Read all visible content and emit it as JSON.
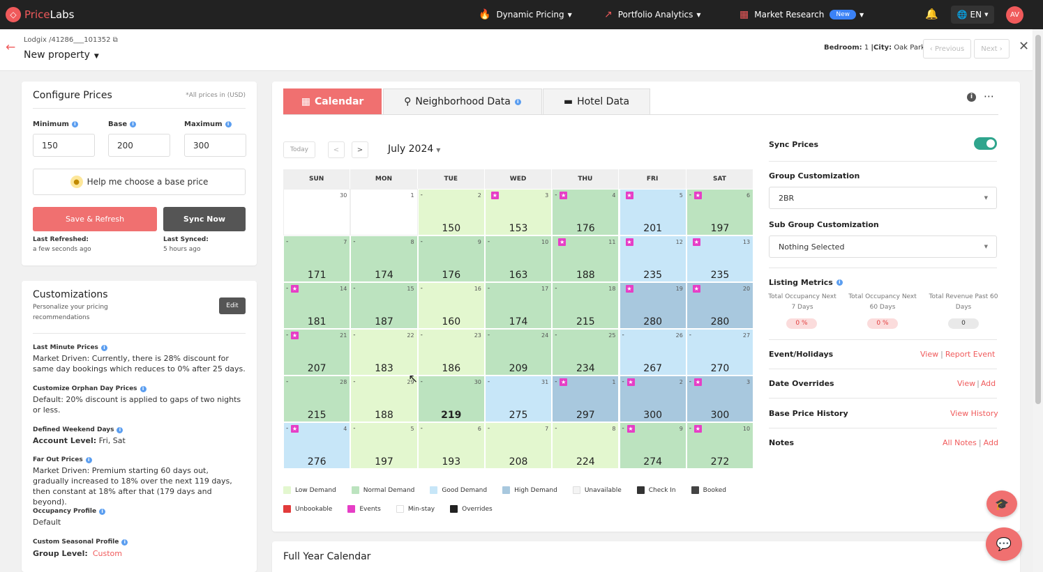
{
  "nav": {
    "logo_mark": "◇",
    "logo_price": "Price",
    "logo_labs": "Labs",
    "dynamic_pricing": "Dynamic Pricing",
    "portfolio_analytics": "Portfolio Analytics",
    "market_research": "Market Research",
    "new_badge": "New",
    "lang": "EN",
    "avatar": "AV"
  },
  "header": {
    "breadcrumb": "Lodgix /41286___101352",
    "title": "New property",
    "bedroom_label": "Bedroom:",
    "bedroom_value": "1",
    "city_label": "|City:",
    "city_value": "Oak Park",
    "previous": "Previous",
    "next": "Next"
  },
  "configure": {
    "title": "Configure Prices",
    "note": "*All prices in (USD)",
    "min_label": "Minimum",
    "base_label": "Base",
    "max_label": "Maximum",
    "min_value": "150",
    "base_value": "200",
    "max_value": "300",
    "help": "Help me choose a base price",
    "save": "Save & Refresh",
    "sync": "Sync Now",
    "last_refreshed_label": "Last Refreshed:",
    "last_refreshed_value": "a few seconds ago",
    "last_synced_label": "Last Synced:",
    "last_synced_value": "5 hours ago"
  },
  "customizations": {
    "title": "Customizations",
    "subtitle": "Personalize your pricing recommendations",
    "edit": "Edit",
    "items": [
      {
        "label": "Last Minute Prices",
        "text": "Market Driven: Currently, there is 28% discount for same day bookings which reduces to 0% after 25 days."
      },
      {
        "label": "Customize Orphan Day Prices",
        "text": "Default: 20% discount is applied to gaps of two nights or less."
      },
      {
        "label": "Defined Weekend Days",
        "prefix": "Account Level:",
        "text": "Fri, Sat"
      },
      {
        "label": "Far Out Prices",
        "text": "Market Driven: Premium starting 60 days out, gradually increased to 18% over the next 119 days, then constant at 18% after that (179 days and beyond)."
      },
      {
        "label": "Occupancy Profile",
        "text": "Default"
      },
      {
        "label": "Custom Seasonal Profile",
        "prefix": "Group Level:",
        "text": "Custom"
      }
    ]
  },
  "tabs": {
    "calendar": "Calendar",
    "neighborhood": "Neighborhood Data",
    "hotel": "Hotel Data"
  },
  "calendar": {
    "today": "Today",
    "prev": "<",
    "next": ">",
    "month": "July 2024",
    "weekdays": [
      "SUN",
      "MON",
      "TUE",
      "WED",
      "THU",
      "FRI",
      "SAT"
    ],
    "colors": {
      "low": "#e3f7cf",
      "normal": "#bce3bf",
      "good": "#c7e6f8",
      "high": "#a8c8de",
      "unavailable": "#f4f4f4",
      "blank": "#ffffff"
    },
    "weeks": [
      [
        {
          "day": "30",
          "price": "",
          "type": "blank",
          "dash": false,
          "star": false
        },
        {
          "day": "1",
          "price": "",
          "type": "blank",
          "dash": false,
          "star": false
        },
        {
          "day": "2",
          "price": "150",
          "type": "low",
          "dash": true,
          "star": false
        },
        {
          "day": "3",
          "price": "153",
          "type": "low",
          "dash": false,
          "star": true
        },
        {
          "day": "4",
          "price": "176",
          "type": "normal",
          "dash": true,
          "star": true
        },
        {
          "day": "5",
          "price": "201",
          "type": "good",
          "dash": false,
          "star": true
        },
        {
          "day": "6",
          "price": "197",
          "type": "normal",
          "dash": true,
          "star": true
        }
      ],
      [
        {
          "day": "7",
          "price": "171",
          "type": "normal",
          "dash": true,
          "star": false
        },
        {
          "day": "8",
          "price": "174",
          "type": "normal",
          "dash": true,
          "star": false
        },
        {
          "day": "9",
          "price": "176",
          "type": "normal",
          "dash": true,
          "star": false
        },
        {
          "day": "10",
          "price": "163",
          "type": "normal",
          "dash": true,
          "star": false
        },
        {
          "day": "11",
          "price": "188",
          "type": "normal",
          "dash": false,
          "star": true
        },
        {
          "day": "12",
          "price": "235",
          "type": "good",
          "dash": false,
          "star": true
        },
        {
          "day": "13",
          "price": "235",
          "type": "good",
          "dash": false,
          "star": true
        }
      ],
      [
        {
          "day": "14",
          "price": "181",
          "type": "normal",
          "dash": true,
          "star": true
        },
        {
          "day": "15",
          "price": "187",
          "type": "normal",
          "dash": true,
          "star": false
        },
        {
          "day": "16",
          "price": "160",
          "type": "low",
          "dash": true,
          "star": false
        },
        {
          "day": "17",
          "price": "174",
          "type": "normal",
          "dash": true,
          "star": false
        },
        {
          "day": "18",
          "price": "215",
          "type": "normal",
          "dash": true,
          "star": false
        },
        {
          "day": "19",
          "price": "280",
          "type": "high",
          "dash": false,
          "star": true
        },
        {
          "day": "20",
          "price": "280",
          "type": "high",
          "dash": false,
          "star": true
        }
      ],
      [
        {
          "day": "21",
          "price": "207",
          "type": "normal",
          "dash": true,
          "star": true
        },
        {
          "day": "22",
          "price": "183",
          "type": "low",
          "dash": true,
          "star": false
        },
        {
          "day": "23",
          "price": "186",
          "type": "low",
          "dash": true,
          "star": false
        },
        {
          "day": "24",
          "price": "209",
          "type": "normal",
          "dash": true,
          "star": false
        },
        {
          "day": "25",
          "price": "234",
          "type": "normal",
          "dash": true,
          "star": false
        },
        {
          "day": "26",
          "price": "267",
          "type": "good",
          "dash": true,
          "star": false
        },
        {
          "day": "27",
          "price": "270",
          "type": "good",
          "dash": true,
          "star": false
        }
      ],
      [
        {
          "day": "28",
          "price": "215",
          "type": "normal",
          "dash": true,
          "star": false
        },
        {
          "day": "29",
          "price": "188",
          "type": "low",
          "dash": true,
          "star": false
        },
        {
          "day": "30",
          "price": "219",
          "type": "normal",
          "dash": true,
          "star": false,
          "bold": true
        },
        {
          "day": "31",
          "price": "275",
          "type": "good",
          "dash": true,
          "star": false
        },
        {
          "day": "1",
          "price": "297",
          "type": "high",
          "dash": true,
          "star": true
        },
        {
          "day": "2",
          "price": "300",
          "type": "high",
          "dash": true,
          "star": true
        },
        {
          "day": "3",
          "price": "300",
          "type": "high",
          "dash": true,
          "star": true
        }
      ],
      [
        {
          "day": "4",
          "price": "276",
          "type": "good",
          "dash": true,
          "star": true
        },
        {
          "day": "5",
          "price": "197",
          "type": "low",
          "dash": true,
          "star": false
        },
        {
          "day": "6",
          "price": "193",
          "type": "low",
          "dash": true,
          "star": false
        },
        {
          "day": "7",
          "price": "208",
          "type": "low",
          "dash": true,
          "star": false
        },
        {
          "day": "8",
          "price": "224",
          "type": "low",
          "dash": true,
          "star": false
        },
        {
          "day": "9",
          "price": "274",
          "type": "normal",
          "dash": true,
          "star": true
        },
        {
          "day": "10",
          "price": "272",
          "type": "normal",
          "dash": true,
          "star": true
        }
      ]
    ],
    "legend1": [
      {
        "label": "Low Demand",
        "color": "#e3f7cf"
      },
      {
        "label": "Normal Demand",
        "color": "#bce3bf"
      },
      {
        "label": "Good Demand",
        "color": "#c7e6f8"
      },
      {
        "label": "High Demand",
        "color": "#a8c8de"
      },
      {
        "label": "Unavailable",
        "color": "#f4f4f4"
      },
      {
        "label": "Check In",
        "color": "#333333"
      },
      {
        "label": "Booked",
        "color": "#444444"
      }
    ],
    "legend2": [
      {
        "label": "Unbookable",
        "color": "#e23b3b"
      },
      {
        "label": "Events",
        "color": "#e63ec6"
      },
      {
        "label": "Min-stay",
        "color": "#ffffff"
      },
      {
        "label": "Overrides",
        "color": "#222222"
      }
    ]
  },
  "right": {
    "sync_prices": "Sync Prices",
    "group_custom": "Group Customization",
    "group_value": "2BR",
    "subgroup_custom": "Sub Group Customization",
    "subgroup_value": "Nothing Selected",
    "listing_metrics": "Listing Metrics",
    "metrics": [
      {
        "label": "Total Occupancy Next 7 Days",
        "value": "0 %"
      },
      {
        "label": "Total Occupancy Next 60 Days",
        "value": "0 %"
      },
      {
        "label": "Total Revenue Past 60 Days",
        "value": "0"
      }
    ],
    "events_label": "Event/Holidays",
    "events_view": "View",
    "events_report": "Report Event",
    "overrides_label": "Date Overrides",
    "overrides_view": "View",
    "overrides_add": "Add",
    "history_label": "Base Price History",
    "history_view": "View History",
    "notes_label": "Notes",
    "notes_all": "All Notes",
    "notes_add": "Add"
  },
  "full_year": {
    "title": "Full Year Calendar"
  }
}
